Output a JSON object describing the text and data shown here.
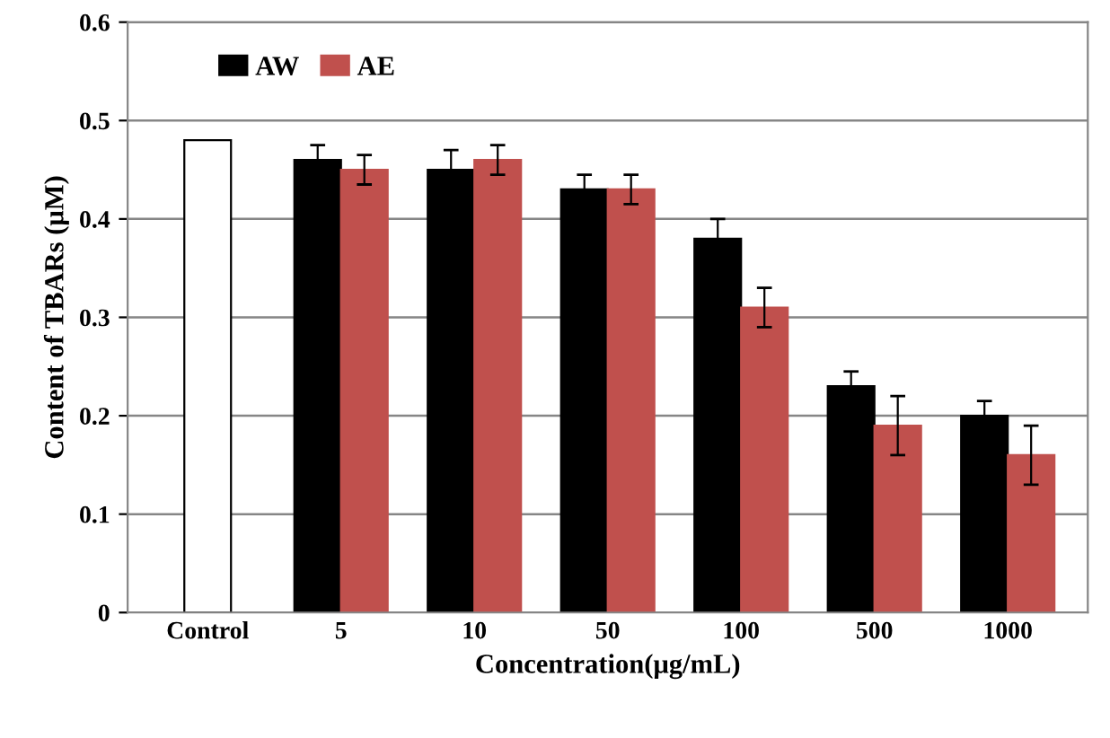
{
  "chart_data": {
    "type": "bar",
    "xlabel": "Concentration(μg/mL)",
    "ylabel": "Content of TBARs (μM)",
    "categories": [
      "Control",
      "5",
      "10",
      "50",
      "100",
      "500",
      "1000"
    ],
    "series": [
      {
        "color": "#ffffff",
        "values": [
          0.48,
          null,
          null,
          null,
          null,
          null,
          null
        ]
      },
      {
        "name": "AW",
        "color": "#000000",
        "values": [
          null,
          0.46,
          0.45,
          0.43,
          0.38,
          0.23,
          0.2
        ],
        "errors": [
          null,
          0.015,
          0.02,
          0.015,
          0.02,
          0.015,
          0.015
        ]
      },
      {
        "name": "AE",
        "color": "#c0504d",
        "values": [
          null,
          0.45,
          0.46,
          0.43,
          0.31,
          0.19,
          0.16
        ],
        "errors": [
          null,
          0.015,
          0.015,
          0.015,
          0.02,
          0.03,
          0.03
        ]
      }
    ],
    "ylim": [
      0,
      0.6
    ],
    "yticks": [
      0,
      0.1,
      0.2,
      0.3,
      0.4,
      0.5,
      0.6
    ],
    "grid": "y",
    "legend": "top left"
  }
}
